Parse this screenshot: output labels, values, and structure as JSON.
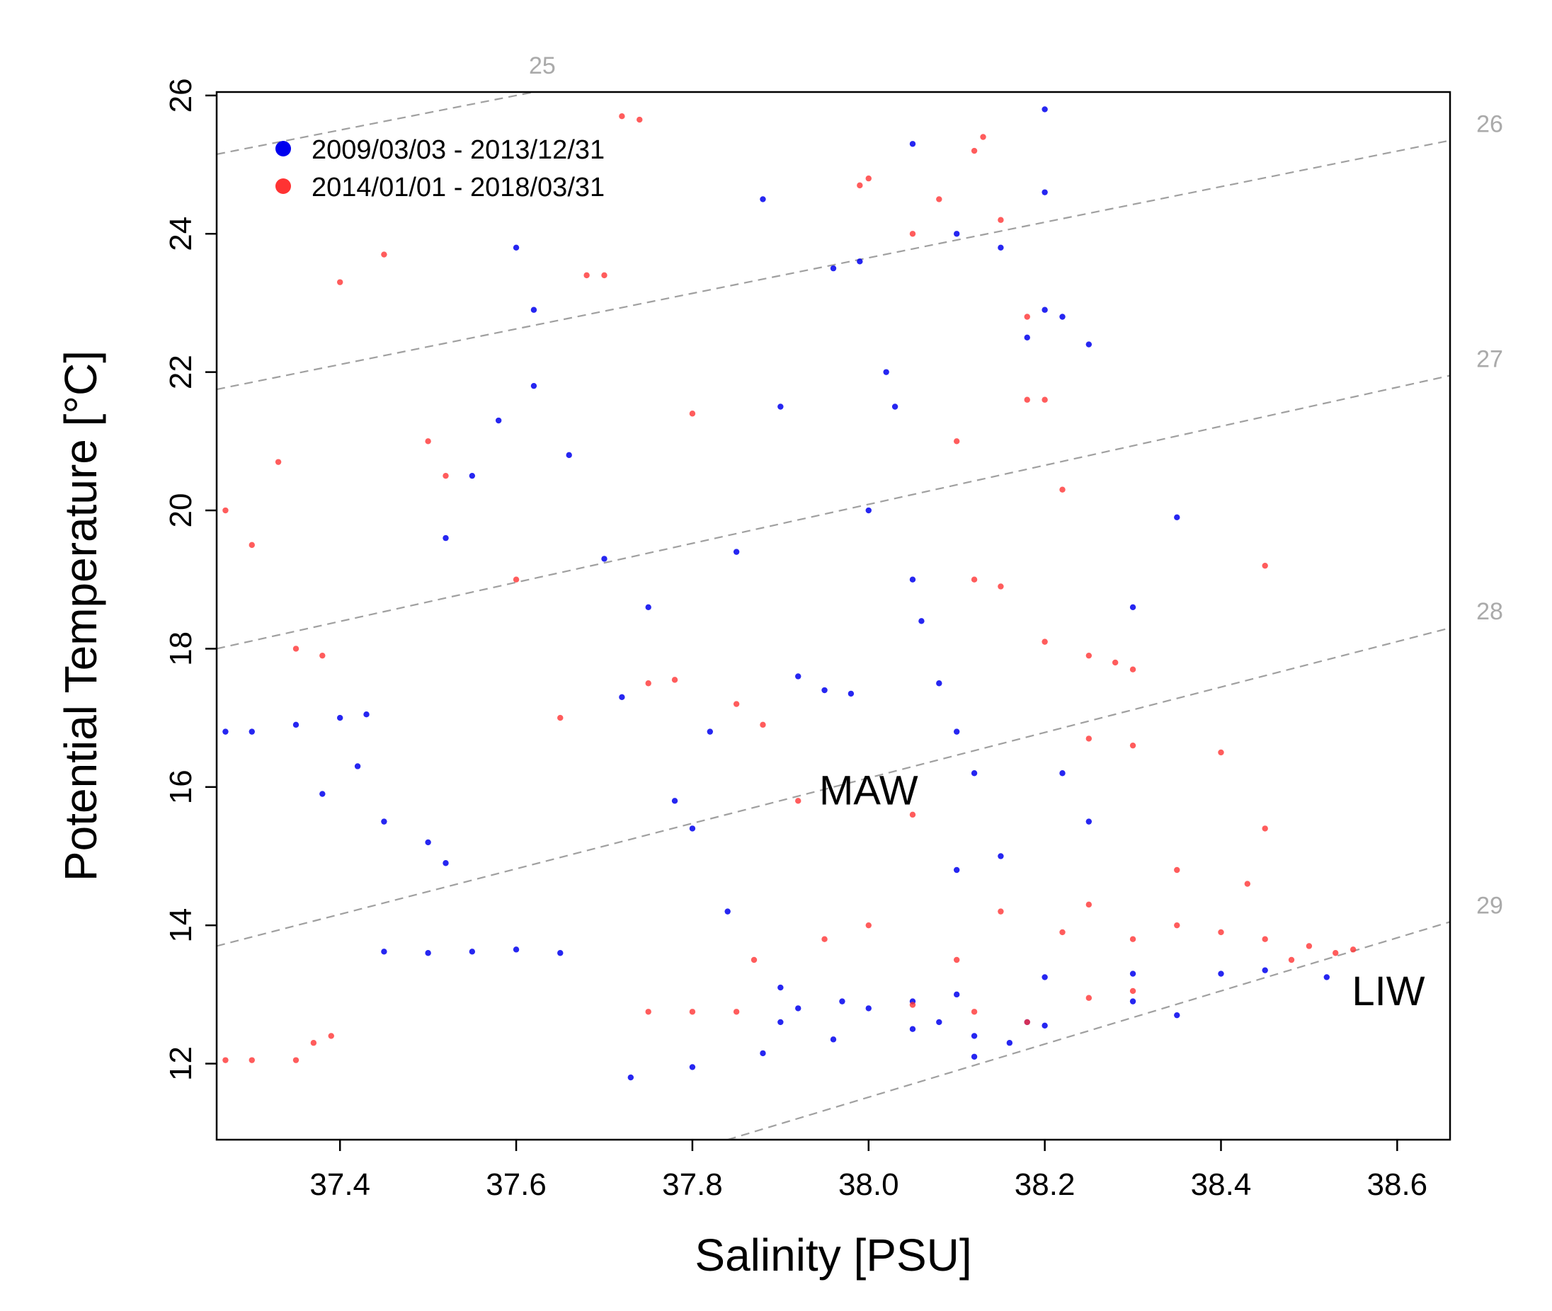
{
  "chart_data": {
    "type": "scatter",
    "xlabel": "Salinity [PSU]",
    "ylabel": "Potential Temperature [°C]",
    "xlim": [
      37.26,
      38.66
    ],
    "ylim": [
      10.9,
      26.05
    ],
    "x_ticks": [
      "37.4",
      "37.6",
      "37.8",
      "38.0",
      "38.2",
      "38.4",
      "38.6"
    ],
    "y_ticks": [
      "12",
      "14",
      "16",
      "18",
      "20",
      "22",
      "24",
      "26"
    ],
    "grid": false,
    "legend_position": "top-left",
    "colors": {
      "blue": "#0000ee",
      "red": "#ff3333",
      "isopycnal": "#a0a0a0"
    },
    "legend": [
      {
        "label": "2009/03/03 - 2013/12/31",
        "color": "#0000ee"
      },
      {
        "label": "2014/01/01 - 2018/03/31",
        "color": "#ff3333"
      }
    ],
    "isopycnals": [
      {
        "label": "25",
        "points": [
          [
            37.26,
            25.15
          ],
          [
            37.62,
            26.05
          ]
        ]
      },
      {
        "label": "26",
        "points": [
          [
            37.26,
            21.75
          ],
          [
            38.66,
            25.35
          ]
        ]
      },
      {
        "label": "27",
        "points": [
          [
            37.26,
            18.0
          ],
          [
            38.66,
            21.95
          ]
        ]
      },
      {
        "label": "28",
        "points": [
          [
            37.26,
            13.7
          ],
          [
            38.66,
            18.3
          ]
        ]
      },
      {
        "label": "29",
        "points": [
          [
            37.84,
            10.9
          ],
          [
            38.66,
            14.05
          ]
        ]
      }
    ],
    "annotations": [
      {
        "text": "MAW",
        "x": 38.0,
        "y": 15.95
      },
      {
        "text": "LIW",
        "x": 38.59,
        "y": 13.05
      }
    ],
    "series": [
      {
        "name": "2009/03/03 - 2013/12/31",
        "color": "#0000ee",
        "values": [
          [
            37.27,
            16.8
          ],
          [
            37.3,
            16.8
          ],
          [
            37.35,
            16.9
          ],
          [
            37.4,
            17.0
          ],
          [
            37.43,
            17.05
          ],
          [
            37.38,
            15.9
          ],
          [
            37.42,
            16.3
          ],
          [
            37.45,
            15.5
          ],
          [
            37.5,
            15.2
          ],
          [
            37.52,
            14.9
          ],
          [
            37.45,
            13.62
          ],
          [
            37.5,
            13.6
          ],
          [
            37.55,
            13.62
          ],
          [
            37.6,
            13.65
          ],
          [
            37.65,
            13.6
          ],
          [
            37.52,
            19.6
          ],
          [
            37.55,
            20.5
          ],
          [
            37.58,
            21.3
          ],
          [
            37.62,
            21.8
          ],
          [
            37.66,
            20.8
          ],
          [
            37.6,
            23.8
          ],
          [
            37.62,
            22.9
          ],
          [
            37.7,
            19.3
          ],
          [
            37.75,
            18.6
          ],
          [
            37.72,
            17.3
          ],
          [
            37.78,
            15.8
          ],
          [
            37.8,
            15.4
          ],
          [
            37.84,
            14.2
          ],
          [
            37.82,
            16.8
          ],
          [
            37.85,
            19.4
          ],
          [
            37.88,
            24.5
          ],
          [
            37.9,
            21.5
          ],
          [
            37.92,
            17.6
          ],
          [
            37.95,
            17.4
          ],
          [
            37.98,
            17.35
          ],
          [
            37.96,
            23.5
          ],
          [
            37.99,
            23.6
          ],
          [
            38.0,
            20.0
          ],
          [
            38.02,
            22.0
          ],
          [
            38.03,
            21.5
          ],
          [
            38.05,
            19.0
          ],
          [
            38.06,
            18.4
          ],
          [
            38.08,
            17.5
          ],
          [
            38.1,
            16.8
          ],
          [
            38.12,
            16.2
          ],
          [
            38.05,
            25.3
          ],
          [
            38.1,
            24.0
          ],
          [
            38.15,
            23.8
          ],
          [
            38.18,
            22.5
          ],
          [
            38.2,
            22.9
          ],
          [
            38.22,
            22.8
          ],
          [
            38.25,
            22.4
          ],
          [
            38.2,
            24.6
          ],
          [
            38.2,
            25.8
          ],
          [
            38.35,
            19.9
          ],
          [
            38.3,
            18.6
          ],
          [
            38.22,
            16.2
          ],
          [
            38.25,
            15.5
          ],
          [
            38.15,
            15.0
          ],
          [
            38.1,
            14.8
          ],
          [
            37.9,
            13.1
          ],
          [
            37.92,
            12.8
          ],
          [
            37.97,
            12.9
          ],
          [
            38.05,
            12.9
          ],
          [
            38.1,
            13.0
          ],
          [
            37.9,
            12.6
          ],
          [
            38.0,
            12.8
          ],
          [
            38.08,
            12.6
          ],
          [
            38.12,
            12.4
          ],
          [
            38.18,
            12.6
          ],
          [
            37.73,
            11.8
          ],
          [
            37.8,
            11.95
          ],
          [
            37.88,
            12.15
          ],
          [
            37.96,
            12.35
          ],
          [
            38.05,
            12.5
          ],
          [
            38.12,
            12.1
          ],
          [
            38.16,
            12.3
          ],
          [
            38.2,
            12.55
          ],
          [
            38.3,
            12.9
          ],
          [
            38.35,
            12.7
          ],
          [
            38.2,
            13.25
          ],
          [
            38.3,
            13.3
          ],
          [
            38.4,
            13.3
          ],
          [
            38.45,
            13.35
          ],
          [
            38.52,
            13.25
          ]
        ]
      },
      {
        "name": "2014/01/01 - 2018/03/31",
        "color": "#ff3333",
        "values": [
          [
            37.27,
            12.05
          ],
          [
            37.3,
            12.05
          ],
          [
            37.35,
            12.05
          ],
          [
            37.37,
            12.3
          ],
          [
            37.39,
            12.4
          ],
          [
            37.27,
            20.0
          ],
          [
            37.3,
            19.5
          ],
          [
            37.35,
            18.0
          ],
          [
            37.38,
            17.9
          ],
          [
            37.33,
            20.7
          ],
          [
            37.4,
            23.3
          ],
          [
            37.45,
            23.7
          ],
          [
            37.5,
            21.0
          ],
          [
            37.52,
            20.5
          ],
          [
            37.6,
            19.0
          ],
          [
            37.65,
            17.0
          ],
          [
            37.68,
            23.4
          ],
          [
            37.7,
            23.4
          ],
          [
            37.72,
            25.7
          ],
          [
            37.74,
            25.65
          ],
          [
            37.75,
            17.5
          ],
          [
            37.78,
            17.55
          ],
          [
            37.8,
            21.4
          ],
          [
            37.85,
            17.2
          ],
          [
            37.88,
            16.9
          ],
          [
            37.75,
            12.75
          ],
          [
            37.8,
            12.75
          ],
          [
            37.85,
            12.75
          ],
          [
            37.87,
            13.5
          ],
          [
            37.92,
            15.8
          ],
          [
            37.95,
            13.8
          ],
          [
            38.0,
            14.0
          ],
          [
            38.05,
            15.6
          ],
          [
            38.1,
            13.5
          ],
          [
            38.15,
            14.2
          ],
          [
            38.05,
            24.0
          ],
          [
            38.08,
            24.5
          ],
          [
            38.1,
            21.0
          ],
          [
            38.12,
            19.0
          ],
          [
            38.15,
            18.9
          ],
          [
            38.12,
            25.2
          ],
          [
            38.13,
            25.4
          ],
          [
            38.18,
            21.6
          ],
          [
            38.2,
            21.6
          ],
          [
            38.2,
            18.1
          ],
          [
            38.25,
            17.9
          ],
          [
            38.28,
            17.8
          ],
          [
            38.3,
            17.7
          ],
          [
            38.25,
            16.7
          ],
          [
            38.3,
            16.6
          ],
          [
            38.22,
            13.9
          ],
          [
            38.25,
            14.3
          ],
          [
            38.3,
            13.8
          ],
          [
            38.35,
            14.0
          ],
          [
            38.4,
            13.9
          ],
          [
            38.45,
            13.8
          ],
          [
            38.5,
            13.7
          ],
          [
            38.53,
            13.6
          ],
          [
            38.55,
            13.65
          ],
          [
            38.48,
            13.5
          ],
          [
            38.3,
            13.05
          ],
          [
            38.25,
            12.95
          ],
          [
            38.18,
            12.6
          ],
          [
            38.12,
            12.75
          ],
          [
            38.05,
            12.85
          ],
          [
            38.35,
            14.8
          ],
          [
            38.4,
            16.5
          ],
          [
            38.45,
            19.2
          ],
          [
            38.45,
            15.4
          ],
          [
            38.43,
            14.6
          ],
          [
            37.99,
            24.7
          ],
          [
            38.0,
            24.8
          ],
          [
            38.15,
            24.2
          ],
          [
            38.18,
            22.8
          ],
          [
            38.22,
            20.3
          ]
        ]
      }
    ]
  }
}
